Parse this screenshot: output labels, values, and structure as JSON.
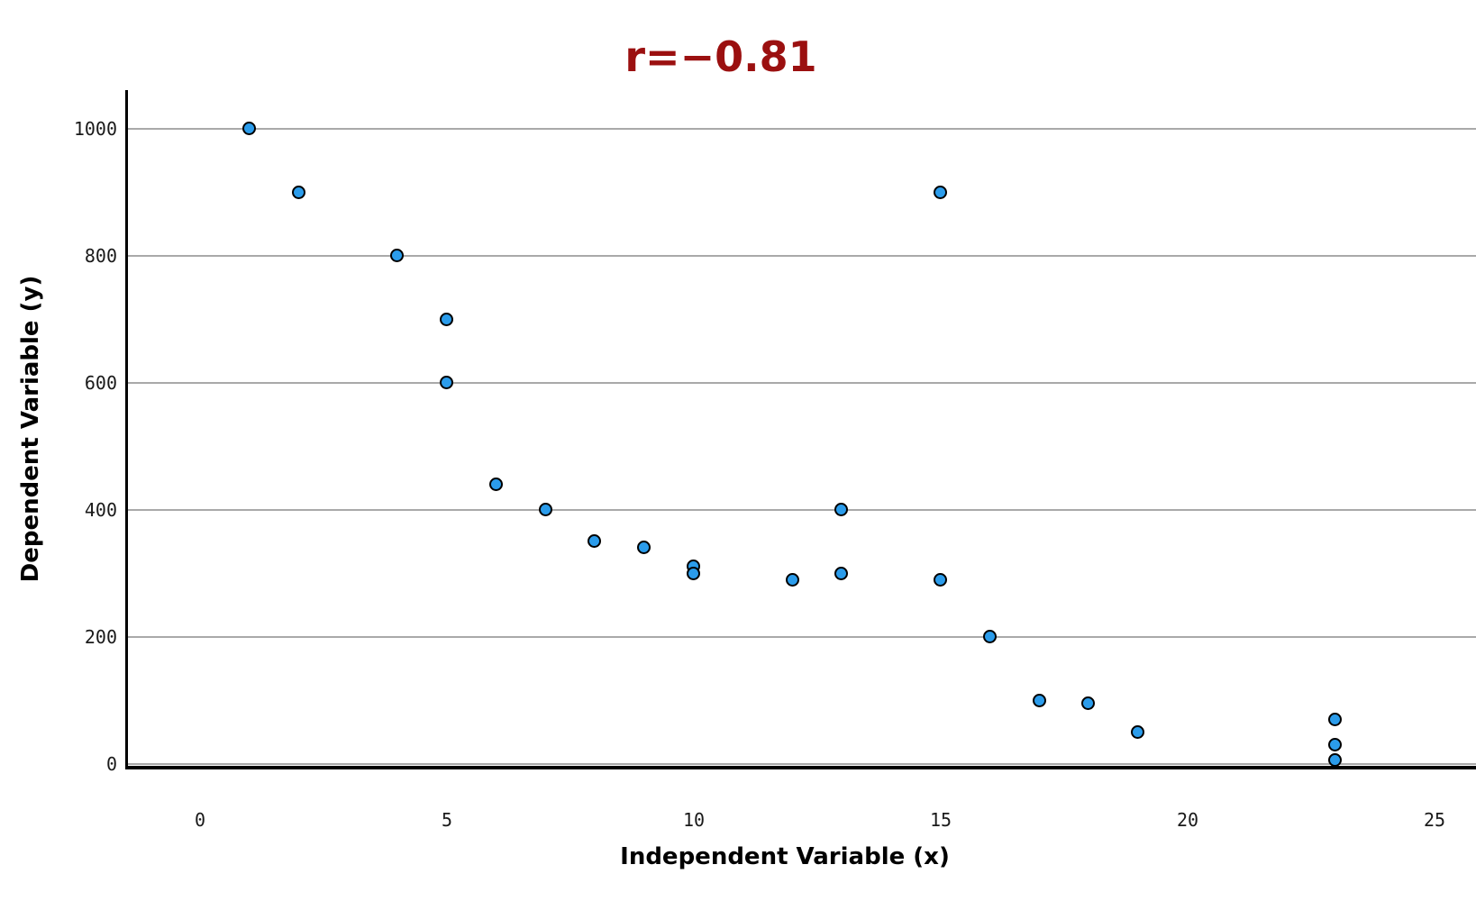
{
  "chart_data": {
    "type": "scatter",
    "title": "r=−0.81",
    "title_color": "#9b1010",
    "xlabel": "Independent Variable (x)",
    "ylabel": "Dependent Variable (y)",
    "x_ticks": [
      0,
      5,
      10,
      15,
      20,
      25
    ],
    "y_ticks": [
      0,
      200,
      400,
      600,
      800,
      1000
    ],
    "xlim": [
      -1.5,
      25.8
    ],
    "ylim": [
      -6,
      1060
    ],
    "grid": "horizontal-only",
    "legend": "none",
    "points": [
      [
        1,
        1000
      ],
      [
        2,
        900
      ],
      [
        4,
        800
      ],
      [
        5,
        700
      ],
      [
        5,
        600
      ],
      [
        6,
        440
      ],
      [
        7,
        400
      ],
      [
        8,
        350
      ],
      [
        9,
        340
      ],
      [
        10,
        310
      ],
      [
        10,
        300
      ],
      [
        12,
        290
      ],
      [
        13,
        400
      ],
      [
        13,
        300
      ],
      [
        15,
        900
      ],
      [
        15,
        290
      ],
      [
        16,
        200
      ],
      [
        17,
        100
      ],
      [
        18,
        95
      ],
      [
        19,
        50
      ],
      [
        23,
        70
      ],
      [
        23,
        30
      ],
      [
        23,
        5
      ]
    ],
    "point_fill_color": "#2b9ceb",
    "point_border_color": "#000000",
    "gridline_color": "#a9a9a9",
    "axis_line_color": "#000000",
    "tick_label_color": "#1a1a1a"
  }
}
